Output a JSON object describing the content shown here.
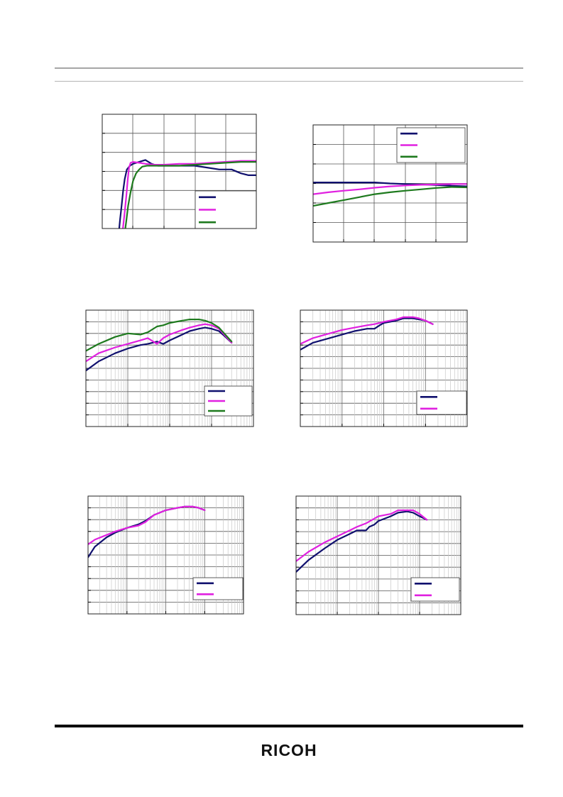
{
  "page": {
    "logo": "RICOH"
  },
  "chart_data": [
    {
      "type": "line",
      "xscale": "linear",
      "xlim": [
        0,
        5
      ],
      "ylim": [
        0,
        6
      ],
      "series": [
        {
          "color": "#10106e",
          "points": [
            [
              0.55,
              0
            ],
            [
              0.58,
              0.5
            ],
            [
              0.63,
              1.2
            ],
            [
              0.68,
              2.0
            ],
            [
              0.73,
              2.6
            ],
            [
              0.8,
              3.1
            ],
            [
              0.9,
              3.3
            ],
            [
              1.0,
              3.4
            ],
            [
              1.2,
              3.5
            ],
            [
              1.4,
              3.6
            ],
            [
              1.6,
              3.4
            ],
            [
              1.8,
              3.3
            ],
            [
              2.2,
              3.3
            ],
            [
              2.6,
              3.3
            ],
            [
              3.0,
              3.3
            ],
            [
              3.4,
              3.2
            ],
            [
              3.8,
              3.1
            ],
            [
              4.2,
              3.1
            ],
            [
              4.5,
              2.9
            ],
            [
              4.75,
              2.8
            ],
            [
              5.0,
              2.8
            ]
          ]
        },
        {
          "color": "#e020e0",
          "points": [
            [
              0.67,
              0
            ],
            [
              0.72,
              0.7
            ],
            [
              0.78,
              1.7
            ],
            [
              0.83,
              2.6
            ],
            [
              0.87,
              3.2
            ],
            [
              0.92,
              3.45
            ],
            [
              1.0,
              3.5
            ],
            [
              1.2,
              3.45
            ],
            [
              1.4,
              3.4
            ],
            [
              1.7,
              3.35
            ],
            [
              2.0,
              3.35
            ],
            [
              2.5,
              3.4
            ],
            [
              3.0,
              3.4
            ],
            [
              3.5,
              3.45
            ],
            [
              4.0,
              3.5
            ],
            [
              4.5,
              3.55
            ],
            [
              5.0,
              3.55
            ]
          ]
        },
        {
          "color": "#1e7a1e",
          "points": [
            [
              0.75,
              0
            ],
            [
              0.78,
              0.4
            ],
            [
              0.84,
              1.2
            ],
            [
              0.92,
              1.9
            ],
            [
              1.0,
              2.5
            ],
            [
              1.1,
              2.9
            ],
            [
              1.2,
              3.1
            ],
            [
              1.3,
              3.25
            ],
            [
              1.45,
              3.3
            ],
            [
              1.7,
              3.3
            ],
            [
              2.0,
              3.3
            ],
            [
              2.5,
              3.3
            ],
            [
              3.0,
              3.35
            ],
            [
              3.5,
              3.4
            ],
            [
              4.0,
              3.45
            ],
            [
              4.5,
              3.5
            ],
            [
              5.0,
              3.5
            ]
          ]
        }
      ]
    },
    {
      "type": "line",
      "xscale": "linear",
      "xlim": [
        0,
        5
      ],
      "ylim": [
        0,
        6
      ],
      "series": [
        {
          "color": "#10106e",
          "points": [
            [
              0,
              3.05
            ],
            [
              0.5,
              3.05
            ],
            [
              1.0,
              3.05
            ],
            [
              1.5,
              3.05
            ],
            [
              2.0,
              3.05
            ],
            [
              2.5,
              3.0
            ],
            [
              3.0,
              2.97
            ],
            [
              3.5,
              2.95
            ],
            [
              4.0,
              2.92
            ],
            [
              4.5,
              2.88
            ],
            [
              5.0,
              2.85
            ]
          ]
        },
        {
          "color": "#e020e0",
          "points": [
            [
              0,
              2.45
            ],
            [
              0.5,
              2.55
            ],
            [
              1.0,
              2.63
            ],
            [
              1.5,
              2.7
            ],
            [
              2.0,
              2.78
            ],
            [
              2.5,
              2.85
            ],
            [
              3.0,
              2.9
            ],
            [
              3.5,
              2.93
            ],
            [
              4.0,
              2.95
            ],
            [
              4.5,
              2.97
            ],
            [
              5.0,
              2.97
            ]
          ]
        },
        {
          "color": "#1e7a1e",
          "points": [
            [
              0,
              1.85
            ],
            [
              0.5,
              2.0
            ],
            [
              1.0,
              2.15
            ],
            [
              1.5,
              2.3
            ],
            [
              2.0,
              2.45
            ],
            [
              2.5,
              2.55
            ],
            [
              3.0,
              2.63
            ],
            [
              3.5,
              2.7
            ],
            [
              4.0,
              2.77
            ],
            [
              4.5,
              2.82
            ],
            [
              5.0,
              2.8
            ]
          ]
        }
      ]
    },
    {
      "type": "line",
      "xscale": "log",
      "xlim": [
        0.1,
        1000
      ],
      "ylim": [
        0,
        100
      ],
      "series": [
        {
          "color": "#10106e",
          "points": [
            [
              0.1,
              48
            ],
            [
              0.2,
              56
            ],
            [
              0.5,
              63
            ],
            [
              1,
              67
            ],
            [
              2,
              70
            ],
            [
              3,
              71
            ],
            [
              5,
              73
            ],
            [
              7,
              71
            ],
            [
              10,
              74
            ],
            [
              20,
              79
            ],
            [
              30,
              82
            ],
            [
              50,
              84
            ],
            [
              70,
              85
            ],
            [
              100,
              84
            ],
            [
              150,
              82
            ],
            [
              200,
              78
            ],
            [
              300,
              72
            ]
          ]
        },
        {
          "color": "#e020e0",
          "points": [
            [
              0.1,
              56
            ],
            [
              0.2,
              63
            ],
            [
              0.5,
              68
            ],
            [
              1,
              71
            ],
            [
              2,
              74
            ],
            [
              3,
              76
            ],
            [
              5,
              71
            ],
            [
              7,
              76
            ],
            [
              10,
              79
            ],
            [
              20,
              83
            ],
            [
              30,
              85
            ],
            [
              50,
              87
            ],
            [
              70,
              88
            ],
            [
              100,
              87
            ],
            [
              150,
              84
            ],
            [
              200,
              79
            ],
            [
              300,
              72
            ]
          ]
        },
        {
          "color": "#1e7a1e",
          "points": [
            [
              0.1,
              65
            ],
            [
              0.2,
              71
            ],
            [
              0.5,
              77
            ],
            [
              1,
              80
            ],
            [
              2,
              79
            ],
            [
              3,
              81
            ],
            [
              5,
              86
            ],
            [
              7,
              87
            ],
            [
              10,
              89
            ],
            [
              20,
              91
            ],
            [
              30,
              92
            ],
            [
              50,
              92
            ],
            [
              70,
              91
            ],
            [
              100,
              89
            ],
            [
              150,
              85
            ],
            [
              200,
              80
            ],
            [
              300,
              73
            ]
          ]
        }
      ]
    },
    {
      "type": "line",
      "xscale": "log",
      "xlim": [
        0.1,
        1000
      ],
      "ylim": [
        0,
        100
      ],
      "series": [
        {
          "color": "#10106e",
          "points": [
            [
              0.1,
              66
            ],
            [
              0.2,
              72
            ],
            [
              0.5,
              76
            ],
            [
              1,
              79
            ],
            [
              2,
              82
            ],
            [
              4,
              84
            ],
            [
              6,
              84
            ],
            [
              8,
              87
            ],
            [
              10,
              89
            ],
            [
              20,
              91
            ],
            [
              30,
              93
            ],
            [
              50,
              93
            ],
            [
              70,
              92
            ],
            [
              100,
              91
            ],
            [
              150,
              88
            ]
          ]
        },
        {
          "color": "#e020e0",
          "points": [
            [
              0.1,
              71
            ],
            [
              0.2,
              76
            ],
            [
              0.5,
              80
            ],
            [
              1,
              83
            ],
            [
              2,
              85
            ],
            [
              4,
              87
            ],
            [
              6,
              88
            ],
            [
              8,
              89
            ],
            [
              10,
              90
            ],
            [
              20,
              92
            ],
            [
              30,
              94
            ],
            [
              50,
              94
            ],
            [
              70,
              93
            ],
            [
              100,
              91
            ],
            [
              150,
              88
            ]
          ]
        }
      ]
    },
    {
      "type": "line",
      "xscale": "log",
      "xlim": [
        0.1,
        1000
      ],
      "ylim": [
        0,
        100
      ],
      "series": [
        {
          "color": "#10106e",
          "points": [
            [
              0.1,
              48
            ],
            [
              0.15,
              57
            ],
            [
              0.3,
              65
            ],
            [
              0.5,
              69
            ],
            [
              1,
              73
            ],
            [
              2,
              76
            ],
            [
              3,
              79
            ],
            [
              5,
              84
            ],
            [
              10,
              88
            ],
            [
              20,
              90
            ],
            [
              30,
              91
            ],
            [
              50,
              91
            ],
            [
              70,
              90
            ],
            [
              100,
              88
            ]
          ]
        },
        {
          "color": "#e020e0",
          "points": [
            [
              0.1,
              59
            ],
            [
              0.15,
              63
            ],
            [
              0.3,
              67
            ],
            [
              0.5,
              70
            ],
            [
              1,
              73
            ],
            [
              2,
              75
            ],
            [
              3,
              78
            ],
            [
              5,
              84
            ],
            [
              10,
              88
            ],
            [
              20,
              90
            ],
            [
              30,
              91
            ],
            [
              50,
              91
            ],
            [
              70,
              90
            ],
            [
              100,
              88
            ]
          ]
        }
      ]
    },
    {
      "type": "line",
      "xscale": "log",
      "xlim": [
        0.1,
        1000
      ],
      "ylim": [
        0,
        100
      ],
      "series": [
        {
          "color": "#10106e",
          "points": [
            [
              0.1,
              36
            ],
            [
              0.2,
              46
            ],
            [
              0.5,
              56
            ],
            [
              1,
              63
            ],
            [
              2,
              68
            ],
            [
              3,
              71
            ],
            [
              5,
              71
            ],
            [
              6,
              74
            ],
            [
              8,
              76
            ],
            [
              10,
              79
            ],
            [
              20,
              83
            ],
            [
              30,
              86
            ],
            [
              50,
              87
            ],
            [
              70,
              86
            ],
            [
              100,
              83
            ],
            [
              150,
              80
            ]
          ]
        },
        {
          "color": "#e020e0",
          "points": [
            [
              0.1,
              45
            ],
            [
              0.2,
              53
            ],
            [
              0.5,
              61
            ],
            [
              1,
              66
            ],
            [
              2,
              71
            ],
            [
              3,
              74
            ],
            [
              5,
              77
            ],
            [
              8,
              81
            ],
            [
              10,
              83
            ],
            [
              20,
              85
            ],
            [
              30,
              88
            ],
            [
              50,
              88
            ],
            [
              70,
              88
            ],
            [
              100,
              85
            ],
            [
              150,
              80
            ]
          ]
        }
      ]
    }
  ]
}
